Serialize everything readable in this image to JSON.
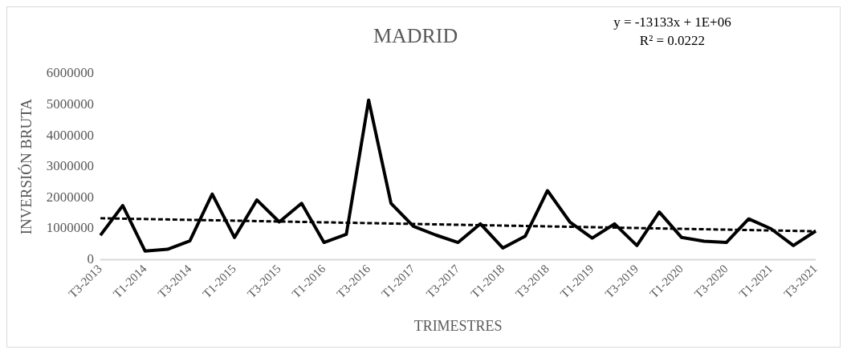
{
  "chart_data": {
    "type": "line",
    "title": "MADRID",
    "xlabel": "TRIMESTRES",
    "ylabel": "INVERSIÓN BRUTA",
    "categories": [
      "T3-2013",
      null,
      "T1-2014",
      null,
      "T3-2014",
      null,
      "T1-2015",
      null,
      "T3-2015",
      null,
      "T1-2016",
      null,
      "T3-2016",
      null,
      "T1-2017",
      null,
      "T3-2017",
      null,
      "T1-2018",
      null,
      "T3-2018",
      null,
      "T1-2019",
      null,
      "T3-2019",
      null,
      "T1-2020",
      null,
      "T3-2020",
      null,
      "T1-2021",
      null,
      "T3-2021"
    ],
    "series": [
      {
        "color": "#000000",
        "values": [
          790000,
          1750000,
          280000,
          340000,
          610000,
          2120000,
          720000,
          1930000,
          1220000,
          1820000,
          560000,
          820000,
          5150000,
          1820000,
          1080000,
          800000,
          560000,
          1160000,
          380000,
          760000,
          2230000,
          1220000,
          700000,
          1160000,
          460000,
          1540000,
          720000,
          600000,
          560000,
          1320000,
          1000000,
          460000,
          930000
        ]
      },
      {
        "type": "line",
        "color": "#000000",
        "line_style": "dashed",
        "values": [
          1340000,
          null,
          null,
          null,
          null,
          null,
          null,
          null,
          null,
          null,
          null,
          null,
          null,
          null,
          null,
          null,
          null,
          null,
          null,
          null,
          null,
          null,
          null,
          null,
          null,
          null,
          null,
          null,
          null,
          null,
          null,
          null,
          920000
        ]
      }
    ],
    "ylim": [
      0,
      6000000
    ],
    "yticks": [
      0,
      1000000,
      2000000,
      3000000,
      4000000,
      5000000,
      6000000
    ],
    "grid": false,
    "legend": false,
    "marker": "none",
    "line_style": "solid",
    "annotations": [
      "y = -13133x + 1E+06",
      "R² = 0.0222"
    ]
  }
}
